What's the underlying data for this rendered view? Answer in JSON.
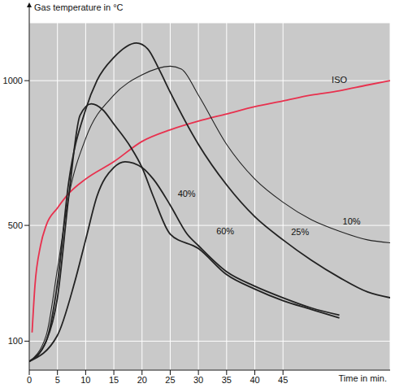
{
  "chart_data": {
    "type": "line",
    "y_label": "Gas temperature in °C",
    "x_label": "Time in min.",
    "xlim": [
      0,
      64
    ],
    "xticks": [
      0,
      5,
      10,
      15,
      20,
      25,
      30,
      35,
      40,
      45
    ],
    "ylim": [
      0,
      1200
    ],
    "yticks": [
      100,
      500,
      1000
    ],
    "grid": true,
    "series": [
      {
        "name": "ISO",
        "color": "#e8314e",
        "x": [
          0.5,
          1,
          2,
          3,
          5,
          7,
          10,
          15,
          20,
          25,
          30,
          35,
          40,
          45,
          50,
          55,
          60,
          64
        ],
        "values": [
          130,
          290,
          430,
          500,
          560,
          610,
          660,
          720,
          790,
          830,
          860,
          885,
          910,
          930,
          950,
          965,
          985,
          1000
        ]
      },
      {
        "name": "40%",
        "color": "#222222",
        "x": [
          0,
          3,
          5,
          7,
          9,
          11,
          13,
          15,
          18,
          20,
          22,
          25,
          30,
          35,
          40,
          45,
          50,
          55
        ],
        "values": [
          30,
          100,
          250,
          600,
          880,
          920,
          900,
          850,
          770,
          700,
          600,
          470,
          420,
          330,
          280,
          240,
          210,
          180
        ]
      },
      {
        "name": "60%",
        "color": "#222222",
        "x": [
          0,
          5,
          8,
          10,
          12,
          15,
          17,
          20,
          22,
          25,
          28,
          30,
          35,
          40,
          45,
          50,
          55
        ],
        "values": [
          30,
          120,
          300,
          450,
          600,
          700,
          720,
          700,
          660,
          570,
          470,
          430,
          340,
          290,
          250,
          215,
          190
        ]
      },
      {
        "name": "25%",
        "color": "#222222",
        "x": [
          0,
          3,
          5,
          7,
          10,
          12,
          15,
          19,
          21,
          23,
          25,
          30,
          35,
          40,
          45,
          50,
          55,
          60,
          64
        ],
        "values": [
          30,
          100,
          300,
          650,
          900,
          1000,
          1080,
          1130,
          1110,
          1040,
          960,
          780,
          640,
          530,
          450,
          380,
          320,
          270,
          250
        ]
      },
      {
        "name": "10%",
        "color": "#222222",
        "x": [
          0,
          3,
          5,
          7,
          10,
          15,
          20,
          25,
          27,
          30,
          35,
          40,
          45,
          50,
          55,
          60,
          64
        ],
        "values": [
          30,
          120,
          350,
          600,
          800,
          950,
          1020,
          1050,
          1040,
          950,
          780,
          660,
          580,
          520,
          480,
          450,
          440
        ]
      }
    ]
  }
}
